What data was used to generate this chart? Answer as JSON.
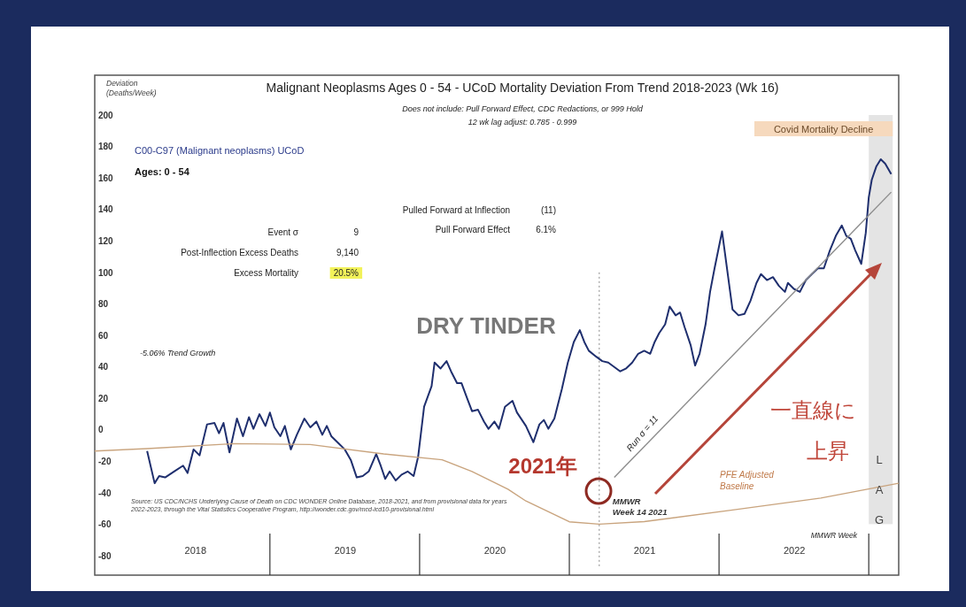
{
  "chart_data": {
    "type": "line",
    "title": "Malignant Neoplasms Ages 0 - 54 - UCoD Mortality Deviation From Trend  2018-2023 (Wk 16)",
    "subtitle": "Does not include: Pull Forward Effect, CDC Redactions, or 999 Hold\n12 wk lag adjust: 0.785 - 0.999",
    "ylabel": "Deviation\n(Deaths/Week)",
    "xlim": [
      2017.83,
      2023.2
    ],
    "ylim": [
      -92.4,
      225.3
    ],
    "xticks": [
      {
        "value": 2018.5,
        "label": "2018"
      },
      {
        "value": 2019.5,
        "label": "2019"
      },
      {
        "value": 2020.5,
        "label": "2020"
      },
      {
        "value": 2021.5,
        "label": "2021"
      },
      {
        "value": 2022.5,
        "label": "2022"
      }
    ],
    "yticks": [
      -80,
      -60,
      -40,
      -20,
      0,
      20,
      40,
      60,
      80,
      100,
      120,
      140,
      160,
      180,
      200
    ],
    "grid": false,
    "marker": "none",
    "series": [
      {
        "color": "#1f2f6e",
        "x": [
          2018.18,
          2018.23,
          2018.26,
          2018.3,
          2018.36,
          2018.42,
          2018.45,
          2018.49,
          2018.53,
          2018.58,
          2018.63,
          2018.66,
          2018.69,
          2018.73,
          2018.78,
          2018.82,
          2018.86,
          2018.89,
          2018.93,
          2018.97,
          2019.0,
          2019.03,
          2019.07,
          2019.1,
          2019.14,
          2019.18,
          2019.23,
          2019.27,
          2019.31,
          2019.35,
          2019.38,
          2019.41,
          2019.46,
          2019.5,
          2019.54,
          2019.58,
          2019.62,
          2019.66,
          2019.71,
          2019.74,
          2019.77,
          2019.8,
          2019.84,
          2019.88,
          2019.92,
          2019.96,
          2019.99,
          2020.03,
          2020.08,
          2020.1,
          2020.14,
          2020.18,
          2020.21,
          2020.25,
          2020.28,
          2020.32,
          2020.35,
          2020.39,
          2020.43,
          2020.46,
          2020.5,
          2020.53,
          2020.57,
          2020.62,
          2020.65,
          2020.71,
          2020.76,
          2020.8,
          2020.83,
          2020.86,
          2020.9,
          2020.95,
          2020.99,
          2021.03,
          2021.07,
          2021.1,
          2021.13,
          2021.18,
          2021.22,
          2021.26,
          2021.3,
          2021.34,
          2021.38,
          2021.42,
          2021.46,
          2021.5,
          2021.54,
          2021.57,
          2021.6,
          2021.64,
          2021.67,
          2021.71,
          2021.74,
          2021.77,
          2021.81,
          2021.84,
          2021.87,
          2021.91,
          2021.94,
          2021.97,
          2022.02,
          2022.09,
          2022.13,
          2022.17,
          2022.21,
          2022.25,
          2022.28,
          2022.32,
          2022.36,
          2022.4,
          2022.44,
          2022.46,
          2022.5,
          2022.54,
          2022.58,
          2022.62,
          2022.66,
          2022.7,
          2022.74,
          2022.78,
          2022.82,
          2022.85,
          2022.88,
          2022.91,
          2022.95,
          2022.98,
          2023.0,
          2023.02,
          2023.05,
          2023.08,
          2023.11,
          2023.15
        ],
        "values": [
          -13.5,
          -34,
          -29.4,
          -30.3,
          -26.5,
          -22.8,
          -27.5,
          -12.5,
          -16.3,
          3.4,
          4.3,
          -2.2,
          4.3,
          -14.4,
          7.1,
          -4.1,
          8,
          0.6,
          9.9,
          2.4,
          10.9,
          1.5,
          -4.1,
          2.4,
          -12.5,
          -3.2,
          7.1,
          1.5,
          5.2,
          -3.2,
          2.4,
          -4.1,
          -8.8,
          -12.5,
          -19.1,
          -30.3,
          -29.4,
          -26.5,
          -15.4,
          -22.8,
          -31.2,
          -26.5,
          -32.2,
          -28.5,
          -26.5,
          -29.4,
          -17.2,
          14.6,
          27.7,
          42.7,
          38.9,
          43.6,
          37.1,
          29.6,
          29.6,
          19.3,
          11.8,
          12.7,
          5.2,
          0.6,
          5.2,
          0.6,
          14.6,
          18.4,
          11,
          2.4,
          -7.9,
          3.4,
          6.2,
          0.6,
          7.1,
          25.8,
          42.7,
          55.8,
          63.3,
          55.8,
          50.2,
          46.4,
          43.6,
          42.7,
          39.9,
          37.1,
          39,
          42.7,
          48.3,
          50.2,
          48.3,
          55.8,
          61.4,
          67,
          78.3,
          72.7,
          74.5,
          65.2,
          53.9,
          40.8,
          48.3,
          67,
          87.6,
          102.6,
          126,
          76.4,
          72.7,
          73.6,
          82,
          93.3,
          98.9,
          95.1,
          97,
          91.4,
          87.6,
          93.3,
          89.5,
          87.6,
          95.1,
          98.9,
          102.6,
          102.6,
          113.9,
          123.2,
          129.8,
          123.2,
          121.3,
          113.9,
          105.4,
          125.1,
          147.6,
          158.8,
          167.2,
          171.9,
          169.1,
          162.5
        ]
      },
      {
        "color": "#c9a47e",
        "x": [
          2017.83,
          2018.18,
          2018.77,
          2019.27,
          2019.76,
          2020.15,
          2020.35,
          2020.59,
          2020.71,
          2021.0,
          2021.2,
          2021.5,
          2022.09,
          2022.68,
          2023.2
        ],
        "values": [
          -13.5,
          -12,
          -8.8,
          -9.4,
          -15.4,
          -19.1,
          -26.5,
          -37.8,
          -45.3,
          -58.5,
          -60,
          -58.4,
          -51,
          -43.4,
          -34
        ]
      },
      {
        "color": "#8c8c8c",
        "x": [
          2021.3,
          2023.15
        ],
        "values": [
          -30.3,
          151
        ]
      }
    ],
    "ref_lines": [
      {
        "axis": "x",
        "value": 2021.2,
        "label": "MMWR\nWeek 14 2021",
        "line_style": "dotted",
        "color": "#888888"
      }
    ],
    "bands": [
      {
        "axis": "x",
        "from": 2023.0,
        "to": 2023.16,
        "label": "Covid Mortality Decline",
        "color": "#e4e4e4"
      }
    ],
    "annotations": [
      "C00-C97 (Malignant neoplasms) UCoD",
      "Ages: 0 - 54",
      "Event σ",
      "9",
      "Post-Inflection Excess Deaths",
      "9,140",
      "Excess Mortality",
      "20.5%",
      "Pulled Forward at Inflection",
      "(11)",
      "Pull Forward Effect",
      "6.1%",
      "-5.06% Trend Growth",
      "DRY TINDER",
      "2021年",
      "Run σ = 11",
      "一直線に",
      "上昇",
      "PFE Adjusted\nBaseline",
      "MMWR Week",
      "LAG",
      "Source: US CDC/NCHS Underlying Cause of Death on CDC WONDER Online Database, 2018-2021, and from provisional data for years\n2022-2023, through the Vital Statistics Cooperative Program, http://wonder.cdc.gov/mcd-icd10-provisional.html"
    ]
  }
}
